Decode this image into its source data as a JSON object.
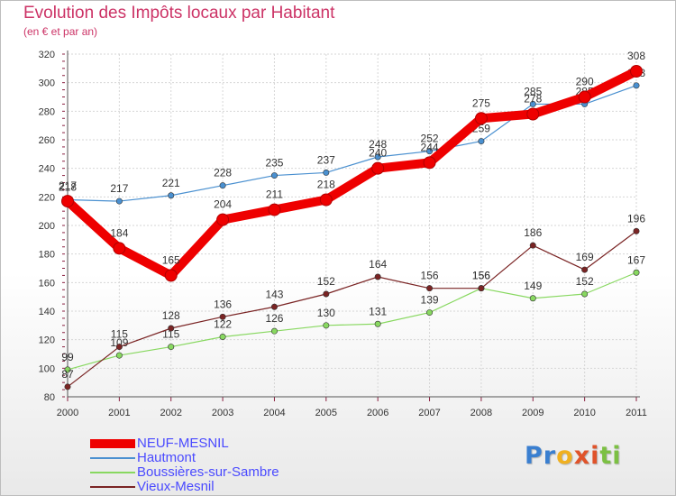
{
  "title": "Evolution des Impôts locaux par Habitant",
  "subtitle": "(en € et par an)",
  "logo": {
    "letters": [
      "P",
      "r",
      "o",
      "x",
      "i",
      "t",
      "i"
    ],
    "colors": [
      "#3a7fd0",
      "#3a7fd0",
      "#f0b020",
      "#e0532a",
      "#e0532a",
      "#7cc043",
      "#7cc043"
    ]
  },
  "chart_data": {
    "type": "line",
    "x": [
      "2000",
      "2001",
      "2002",
      "2003",
      "2004",
      "2005",
      "2006",
      "2007",
      "2008",
      "2009",
      "2010",
      "2011"
    ],
    "y_ticks": [
      "80",
      "100",
      "120",
      "140",
      "160",
      "180",
      "200",
      "220",
      "240",
      "260",
      "280",
      "300",
      "320"
    ],
    "ylim": [
      80,
      320
    ],
    "grid": true,
    "legend_position": "bottom-left",
    "series": [
      {
        "name": "Hautmont",
        "color": "#4a90d0",
        "values": [
          218,
          217,
          221,
          228,
          235,
          237,
          248,
          252,
          259,
          285,
          285,
          298
        ],
        "labels": [
          "218",
          "217",
          "221",
          "228",
          "235",
          "237",
          "248",
          "252",
          "259",
          "285",
          "285",
          "298"
        ]
      },
      {
        "name": "Boussières-sur-Sambre",
        "color": "#88d860",
        "values": [
          99,
          109,
          115,
          122,
          126,
          130,
          131,
          139,
          156,
          149,
          152,
          167
        ],
        "labels": [
          "99",
          "109",
          "115",
          "122",
          "126",
          "130",
          "131",
          "139",
          "156",
          "149",
          "152",
          "167"
        ]
      },
      {
        "name": "Vieux-Mesnil",
        "color": "#7a2424",
        "values": [
          87,
          115,
          128,
          136,
          143,
          152,
          164,
          156,
          156,
          186,
          169,
          196
        ],
        "labels": [
          "87",
          "115",
          "128",
          "136",
          "143",
          "152",
          "164",
          "156",
          "156",
          "186",
          "169",
          "196"
        ]
      },
      {
        "name": "NEUF-MESNIL",
        "color": "#ee0000",
        "values": [
          217,
          184,
          165,
          204,
          211,
          218,
          240,
          244,
          275,
          278,
          290,
          308
        ],
        "labels": [
          "217",
          "184",
          "165",
          "204",
          "211",
          "218",
          "240",
          "244",
          "275",
          "278",
          "290",
          "308"
        ]
      }
    ]
  }
}
